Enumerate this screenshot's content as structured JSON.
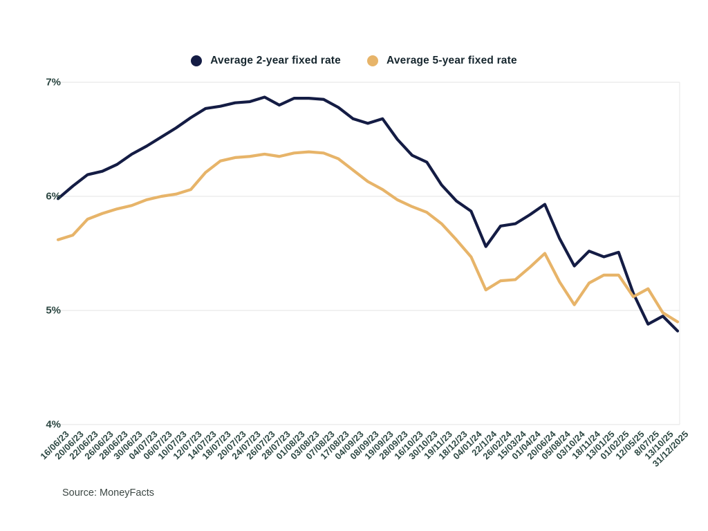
{
  "legend": {
    "items": [
      {
        "label": "Average 2-year fixed rate",
        "color": "#141c44"
      },
      {
        "label": "Average 5-year fixed rate",
        "color": "#e7b469"
      }
    ]
  },
  "source": {
    "text": "Source: MoneyFacts"
  },
  "colors": {
    "grid": "#e3e3e3",
    "right_spine": "#e6e6e6",
    "axis_text": "#2c4742",
    "legend_text": "#16262e",
    "source_text": "#3c4744",
    "background": "#ffffff"
  },
  "chart_data": {
    "type": "line",
    "grid": "horizontal",
    "legend_position": "top-center",
    "x_tick_rotation": 45,
    "y_axis": {
      "min": 4,
      "max": 7,
      "unit": "%",
      "ticks": [
        "7%",
        "6%",
        "5%",
        "4%"
      ],
      "tick_values": [
        7,
        6,
        5,
        4
      ]
    },
    "categories": [
      "16/06/23",
      "20/06/23",
      "22/06/23",
      "26/06/23",
      "28/06/23",
      "30/06/23",
      "04/07/23",
      "06/07/23",
      "10/07/23",
      "12/07/23",
      "14/07/23",
      "18/07/23",
      "20/07/23",
      "24/07/23",
      "26/07/23",
      "28/07/23",
      "01/08/23",
      "03/08/23",
      "07/08/23",
      "17/08/23",
      "04/09/23",
      "08/09/23",
      "19/09/23",
      "28/09/23",
      "16/10/23",
      "30/10/23",
      "19/11/23",
      "18/12/23",
      "04/01/24",
      "22/1/24",
      "26/02/24",
      "15/03/24",
      "01/04/24",
      "20/06/24",
      "05/08/24",
      "03/10/24",
      "18/11/24",
      "13/01/25",
      "01/02/25",
      "12/05/25",
      "8/07/25",
      "13/10/25",
      "31/12/2025"
    ],
    "series": [
      {
        "name": "Average 2-year fixed rate",
        "color": "#141c44",
        "values": [
          5.98,
          6.09,
          6.19,
          6.22,
          6.28,
          6.37,
          6.44,
          6.52,
          6.6,
          6.69,
          6.77,
          6.79,
          6.82,
          6.83,
          6.87,
          6.8,
          6.86,
          6.86,
          6.85,
          6.78,
          6.68,
          6.64,
          6.68,
          6.5,
          6.36,
          6.3,
          6.1,
          5.96,
          5.87,
          5.56,
          5.74,
          5.76,
          5.84,
          5.93,
          5.63,
          5.39,
          5.52,
          5.47,
          5.51,
          5.15,
          4.88,
          4.95,
          4.82
        ]
      },
      {
        "name": "Average 5-year fixed rate",
        "color": "#e7b469",
        "values": [
          5.62,
          5.66,
          5.8,
          5.85,
          5.89,
          5.92,
          5.97,
          6.0,
          6.02,
          6.06,
          6.21,
          6.31,
          6.34,
          6.35,
          6.37,
          6.35,
          6.38,
          6.39,
          6.38,
          6.33,
          6.23,
          6.13,
          6.06,
          5.97,
          5.91,
          5.86,
          5.76,
          5.62,
          5.47,
          5.18,
          5.26,
          5.27,
          5.38,
          5.5,
          5.25,
          5.05,
          5.24,
          5.31,
          5.31,
          5.12,
          5.19,
          4.98,
          4.9
        ]
      }
    ]
  }
}
